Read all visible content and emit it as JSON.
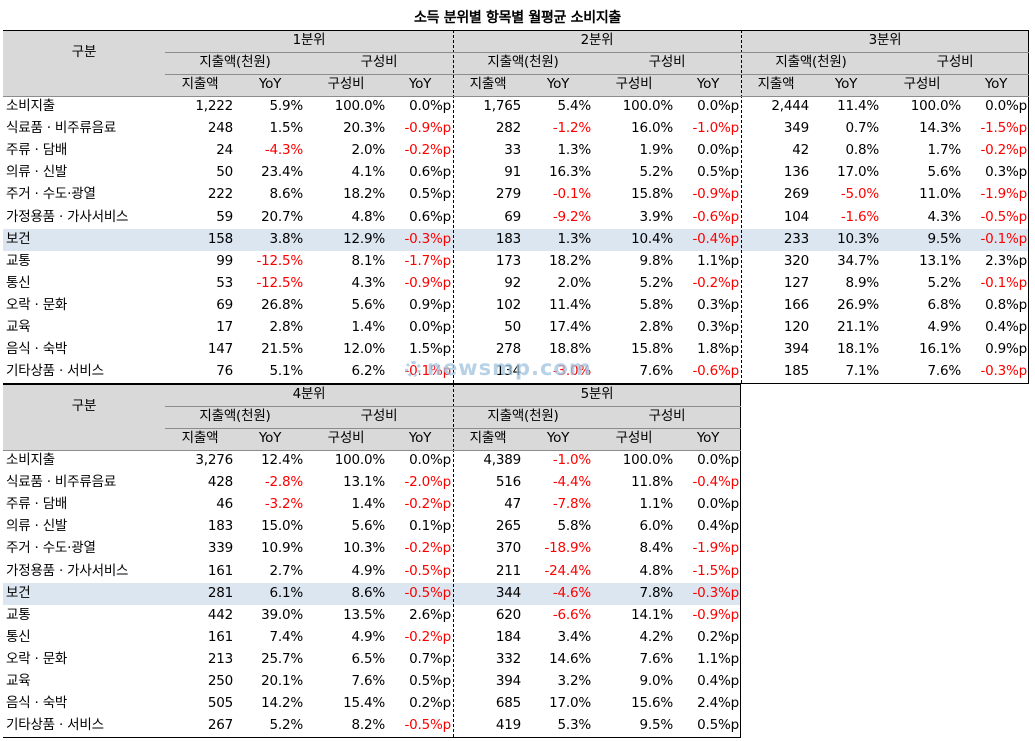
{
  "title": "소득 분위별 항목별 월평균 소비지출",
  "headers": {
    "category": "구분",
    "group_spend": "지출액(천원)",
    "group_comp": "구성비",
    "spend": "지출액",
    "yoy": "YoY",
    "comp": "구성비"
  },
  "colors": {
    "negative": "#ff0000",
    "highlight_row": "#dce6f1",
    "header_bg": "#d9d9d9"
  },
  "highlight_row_index": 6,
  "categories": [
    "소비지출",
    "식료품 · 비주류음료",
    "주류 · 담배",
    "의류 · 신발",
    "주거 · 수도·광열",
    "가정용품 · 가사서비스",
    "보건",
    "교통",
    "통신",
    "오락 · 문화",
    "교육",
    "음식 · 숙박",
    "기타상품 · 서비스"
  ],
  "quintiles": [
    {
      "label": "1분위",
      "rows": [
        [
          "1,222",
          "5.9%",
          "100.0%",
          "0.0%p"
        ],
        [
          "248",
          "1.5%",
          "20.3%",
          "-0.9%p"
        ],
        [
          "24",
          "-4.3%",
          "2.0%",
          "-0.2%p"
        ],
        [
          "50",
          "23.4%",
          "4.1%",
          "0.6%p"
        ],
        [
          "222",
          "8.6%",
          "18.2%",
          "0.5%p"
        ],
        [
          "59",
          "20.7%",
          "4.8%",
          "0.6%p"
        ],
        [
          "158",
          "3.8%",
          "12.9%",
          "-0.3%p"
        ],
        [
          "99",
          "-12.5%",
          "8.1%",
          "-1.7%p"
        ],
        [
          "53",
          "-12.5%",
          "4.3%",
          "-0.9%p"
        ],
        [
          "69",
          "26.8%",
          "5.6%",
          "0.9%p"
        ],
        [
          "17",
          "2.8%",
          "1.4%",
          "0.0%p"
        ],
        [
          "147",
          "21.5%",
          "12.0%",
          "1.5%p"
        ],
        [
          "76",
          "5.1%",
          "6.2%",
          "-0.1%p"
        ]
      ]
    },
    {
      "label": "2분위",
      "rows": [
        [
          "1,765",
          "5.4%",
          "100.0%",
          "0.0%p"
        ],
        [
          "282",
          "-1.2%",
          "16.0%",
          "-1.0%p"
        ],
        [
          "33",
          "1.3%",
          "1.9%",
          "0.0%p"
        ],
        [
          "91",
          "16.3%",
          "5.2%",
          "0.5%p"
        ],
        [
          "279",
          "-0.1%",
          "15.8%",
          "-0.9%p"
        ],
        [
          "69",
          "-9.2%",
          "3.9%",
          "-0.6%p"
        ],
        [
          "183",
          "1.3%",
          "10.4%",
          "-0.4%p"
        ],
        [
          "173",
          "18.2%",
          "9.8%",
          "1.1%p"
        ],
        [
          "92",
          "2.0%",
          "5.2%",
          "-0.2%p"
        ],
        [
          "102",
          "11.4%",
          "5.8%",
          "0.3%p"
        ],
        [
          "50",
          "17.4%",
          "2.8%",
          "0.3%p"
        ],
        [
          "278",
          "18.8%",
          "15.8%",
          "1.8%p"
        ],
        [
          "134",
          "-3.0%",
          "7.6%",
          "-0.6%p"
        ]
      ]
    },
    {
      "label": "3분위",
      "rows": [
        [
          "2,444",
          "11.4%",
          "100.0%",
          "0.0%p"
        ],
        [
          "349",
          "0.7%",
          "14.3%",
          "-1.5%p"
        ],
        [
          "42",
          "0.8%",
          "1.7%",
          "-0.2%p"
        ],
        [
          "136",
          "17.0%",
          "5.6%",
          "0.3%p"
        ],
        [
          "269",
          "-5.0%",
          "11.0%",
          "-1.9%p"
        ],
        [
          "104",
          "-1.6%",
          "4.3%",
          "-0.5%p"
        ],
        [
          "233",
          "10.3%",
          "9.5%",
          "-0.1%p"
        ],
        [
          "320",
          "34.7%",
          "13.1%",
          "2.3%p"
        ],
        [
          "127",
          "8.9%",
          "5.2%",
          "-0.1%p"
        ],
        [
          "166",
          "26.9%",
          "6.8%",
          "0.8%p"
        ],
        [
          "120",
          "21.1%",
          "4.9%",
          "0.4%p"
        ],
        [
          "394",
          "18.1%",
          "16.1%",
          "0.9%p"
        ],
        [
          "185",
          "7.1%",
          "7.6%",
          "-0.3%p"
        ]
      ]
    },
    {
      "label": "4분위",
      "rows": [
        [
          "3,276",
          "12.4%",
          "100.0%",
          "0.0%p"
        ],
        [
          "428",
          "-2.8%",
          "13.1%",
          "-2.0%p"
        ],
        [
          "46",
          "-3.2%",
          "1.4%",
          "-0.2%p"
        ],
        [
          "183",
          "15.0%",
          "5.6%",
          "0.1%p"
        ],
        [
          "339",
          "10.9%",
          "10.3%",
          "-0.2%p"
        ],
        [
          "161",
          "2.7%",
          "4.9%",
          "-0.5%p"
        ],
        [
          "281",
          "6.1%",
          "8.6%",
          "-0.5%p"
        ],
        [
          "442",
          "39.0%",
          "13.5%",
          "2.6%p"
        ],
        [
          "161",
          "7.4%",
          "4.9%",
          "-0.2%p"
        ],
        [
          "213",
          "25.7%",
          "6.5%",
          "0.7%p"
        ],
        [
          "250",
          "20.1%",
          "7.6%",
          "0.5%p"
        ],
        [
          "505",
          "14.2%",
          "15.4%",
          "0.2%p"
        ],
        [
          "267",
          "5.2%",
          "8.2%",
          "-0.5%p"
        ]
      ]
    },
    {
      "label": "5분위",
      "rows": [
        [
          "4,389",
          "-1.0%",
          "100.0%",
          "0.0%p"
        ],
        [
          "516",
          "-4.4%",
          "11.8%",
          "-0.4%p"
        ],
        [
          "47",
          "-7.8%",
          "1.1%",
          "0.0%p"
        ],
        [
          "265",
          "5.8%",
          "6.0%",
          "0.4%p"
        ],
        [
          "370",
          "-18.9%",
          "8.4%",
          "-1.9%p"
        ],
        [
          "211",
          "-24.4%",
          "4.8%",
          "-1.5%p"
        ],
        [
          "344",
          "-4.6%",
          "7.8%",
          "-0.3%p"
        ],
        [
          "620",
          "-6.6%",
          "14.1%",
          "-0.9%p"
        ],
        [
          "184",
          "3.4%",
          "4.2%",
          "0.2%p"
        ],
        [
          "332",
          "14.6%",
          "7.6%",
          "1.1%p"
        ],
        [
          "394",
          "3.2%",
          "9.0%",
          "0.4%p"
        ],
        [
          "685",
          "17.0%",
          "15.6%",
          "2.4%p"
        ],
        [
          "419",
          "5.3%",
          "9.5%",
          "0.5%p"
        ]
      ]
    }
  ],
  "watermark": "newsmp.com"
}
